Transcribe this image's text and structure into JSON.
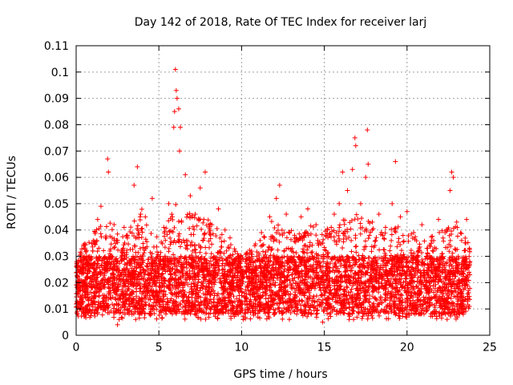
{
  "chart_data": {
    "type": "scatter",
    "title": "Day 142 of 2018, Rate Of TEC Index for receiver larj",
    "xlabel": "GPS time / hours",
    "ylabel": "ROTI / TECUs",
    "xlim": [
      0,
      25
    ],
    "ylim": [
      0,
      0.11
    ],
    "xticks": [
      0,
      5,
      10,
      15,
      20,
      25
    ],
    "xtick_labels": [
      "0",
      "5",
      "10",
      "15",
      "20",
      "25"
    ],
    "yticks": [
      0,
      0.01,
      0.02,
      0.03,
      0.04,
      0.05,
      0.06,
      0.07,
      0.08,
      0.09,
      0.1,
      0.11
    ],
    "ytick_labels": [
      "0",
      "0.01",
      "0.02",
      "0.03",
      "0.04",
      "0.05",
      "0.06",
      "0.07",
      "0.08",
      "0.09",
      "0.1",
      "0.11"
    ],
    "grid": true,
    "marker": "+",
    "color": "#ff0000",
    "data_x_range": [
      0,
      23.8
    ],
    "series": [
      {
        "name": "ROTI",
        "points": [
          [
            0.1,
            0.018
          ],
          [
            0.3,
            0.031
          ],
          [
            0.6,
            0.022
          ],
          [
            0.9,
            0.027
          ],
          [
            1.1,
            0.035
          ],
          [
            1.3,
            0.044
          ],
          [
            1.5,
            0.049
          ],
          [
            1.7,
            0.029
          ],
          [
            1.9,
            0.067
          ],
          [
            1.95,
            0.062
          ],
          [
            2.3,
            0.036
          ],
          [
            2.5,
            0.004
          ],
          [
            2.6,
            0.006
          ],
          [
            2.9,
            0.041
          ],
          [
            3.1,
            0.038
          ],
          [
            3.5,
            0.057
          ],
          [
            3.7,
            0.064
          ],
          [
            3.9,
            0.046
          ],
          [
            4.2,
            0.033
          ],
          [
            4.6,
            0.052
          ],
          [
            5.0,
            0.026
          ],
          [
            5.3,
            0.041
          ],
          [
            5.6,
            0.05
          ],
          [
            5.9,
            0.079
          ],
          [
            5.95,
            0.085
          ],
          [
            6.0,
            0.101
          ],
          [
            6.05,
            0.093
          ],
          [
            6.1,
            0.09
          ],
          [
            6.2,
            0.086
          ],
          [
            6.3,
            0.079
          ],
          [
            6.25,
            0.07
          ],
          [
            6.6,
            0.061
          ],
          [
            6.9,
            0.053
          ],
          [
            7.2,
            0.046
          ],
          [
            7.5,
            0.056
          ],
          [
            7.8,
            0.062
          ],
          [
            8.2,
            0.042
          ],
          [
            8.6,
            0.048
          ],
          [
            9.0,
            0.04
          ],
          [
            9.3,
            0.037
          ],
          [
            9.6,
            0.032
          ],
          [
            10.0,
            0.024
          ],
          [
            10.3,
            0.029
          ],
          [
            10.8,
            0.034
          ],
          [
            11.2,
            0.039
          ],
          [
            11.7,
            0.045
          ],
          [
            12.1,
            0.052
          ],
          [
            12.3,
            0.057
          ],
          [
            12.7,
            0.046
          ],
          [
            13.2,
            0.038
          ],
          [
            13.6,
            0.045
          ],
          [
            14.0,
            0.048
          ],
          [
            14.5,
            0.042
          ],
          [
            14.9,
            0.035
          ],
          [
            15.2,
            0.04
          ],
          [
            15.6,
            0.046
          ],
          [
            15.9,
            0.05
          ],
          [
            16.1,
            0.062
          ],
          [
            16.4,
            0.055
          ],
          [
            16.7,
            0.063
          ],
          [
            16.85,
            0.075
          ],
          [
            16.9,
            0.072
          ],
          [
            17.2,
            0.05
          ],
          [
            17.5,
            0.06
          ],
          [
            17.6,
            0.078
          ],
          [
            17.65,
            0.065
          ],
          [
            17.9,
            0.043
          ],
          [
            18.3,
            0.046
          ],
          [
            18.7,
            0.041
          ],
          [
            19.1,
            0.05
          ],
          [
            19.3,
            0.066
          ],
          [
            19.6,
            0.045
          ],
          [
            20.0,
            0.047
          ],
          [
            20.4,
            0.039
          ],
          [
            20.9,
            0.042
          ],
          [
            21.5,
            0.036
          ],
          [
            21.9,
            0.044
          ],
          [
            22.3,
            0.039
          ],
          [
            22.6,
            0.055
          ],
          [
            22.7,
            0.062
          ],
          [
            22.8,
            0.06
          ],
          [
            23.0,
            0.043
          ],
          [
            23.3,
            0.036
          ],
          [
            23.6,
            0.044
          ],
          [
            23.8,
            0.028
          ],
          [
            3.6,
            0.006
          ],
          [
            10.1,
            0.006
          ],
          [
            14.9,
            0.005
          ],
          [
            16.5,
            0.006
          ],
          [
            9.8,
            0.008
          ]
        ]
      }
    ],
    "dense_band": {
      "description": "dense cloud of ROTI samples covering the full day",
      "typical_min": 0.008,
      "typical_max": 0.03,
      "typical_center": 0.018
    },
    "envelope": {
      "x": [
        0,
        1,
        2,
        3,
        4,
        5,
        6,
        7,
        8,
        9,
        10,
        11,
        12,
        13,
        14,
        15,
        16,
        17,
        18,
        19,
        20,
        21,
        22,
        23,
        23.8
      ],
      "upper": [
        0.03,
        0.04,
        0.044,
        0.038,
        0.05,
        0.036,
        0.05,
        0.046,
        0.044,
        0.038,
        0.03,
        0.036,
        0.045,
        0.04,
        0.042,
        0.04,
        0.045,
        0.046,
        0.042,
        0.044,
        0.04,
        0.036,
        0.04,
        0.042,
        0.035
      ]
    }
  }
}
